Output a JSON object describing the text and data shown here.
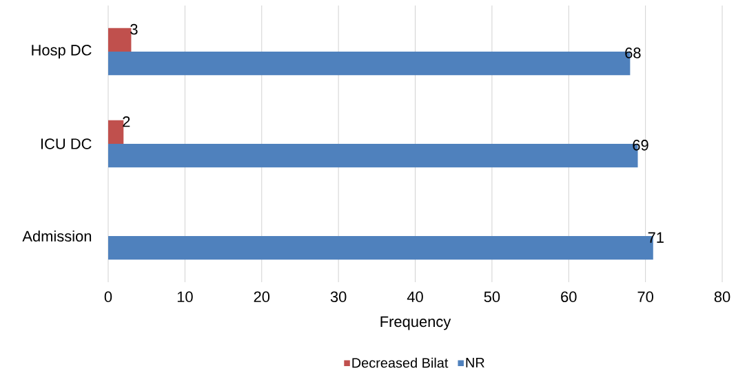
{
  "chart_data": {
    "type": "bar",
    "orientation": "horizontal",
    "xlabel": "Frequency",
    "categories": [
      "Hosp DC",
      "ICU DC",
      "Admission"
    ],
    "series": [
      {
        "name": "Decreased Bilat",
        "color": "#c0504d",
        "values": [
          3,
          2,
          null
        ]
      },
      {
        "name": "NR",
        "color": "#4f81bd",
        "values": [
          68,
          69,
          71
        ]
      }
    ],
    "xlim": [
      0,
      80
    ],
    "xticks": [
      0,
      10,
      20,
      30,
      40,
      50,
      60,
      70,
      80
    ],
    "grid": "x",
    "legend": "bottom",
    "data_labels": true
  }
}
